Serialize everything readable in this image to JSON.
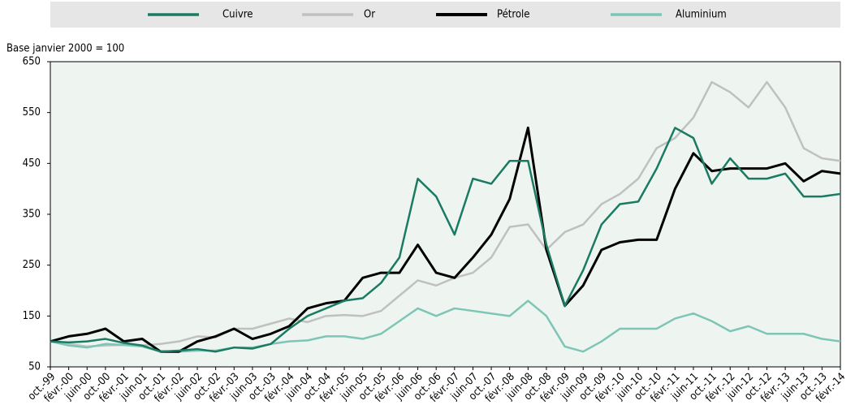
{
  "chart_data": {
    "type": "line",
    "y_axis_label": "Base janvier 2000 = 100",
    "categories": [
      "oct.-99",
      "févr.-00",
      "juin-00",
      "oct.-00",
      "févr.-01",
      "juin-01",
      "oct.-01",
      "févr.-02",
      "juin-02",
      "oct.-02",
      "févr.-03",
      "juin-03",
      "oct.-03",
      "févr.-04",
      "juin-04",
      "oct.-04",
      "févr.-05",
      "juin-05",
      "oct.-05",
      "févr.-06",
      "juin-06",
      "oct.-06",
      "févr.-07",
      "juin-07",
      "oct.-07",
      "févr.-08",
      "juin-08",
      "oct.-08",
      "févr.-09",
      "juin-09",
      "oct.-09",
      "févr.-10",
      "juin-10",
      "oct.-10",
      "févr.-11",
      "juin-11",
      "oct.-11",
      "févr.-12",
      "juin-12",
      "oct.-12",
      "févr.-13",
      "juin-13",
      "oct.-13",
      "févr.-14"
    ],
    "series": [
      {
        "name": "Cuivre",
        "color": "#1b7a62",
        "width": 2.5,
        "values": [
          100,
          98,
          100,
          105,
          97,
          92,
          80,
          82,
          85,
          80,
          88,
          86,
          95,
          125,
          150,
          165,
          180,
          185,
          215,
          265,
          420,
          385,
          310,
          420,
          410,
          455,
          455,
          290,
          170,
          240,
          330,
          370,
          375,
          440,
          520,
          500,
          410,
          460,
          420,
          420,
          430,
          385,
          385,
          390
        ]
      },
      {
        "name": "Or",
        "color": "#c0c0c0",
        "width": 2.5,
        "values": [
          100,
          95,
          90,
          92,
          93,
          92,
          95,
          100,
          110,
          108,
          125,
          125,
          135,
          145,
          138,
          150,
          152,
          150,
          160,
          190,
          220,
          210,
          225,
          235,
          265,
          325,
          330,
          280,
          315,
          330,
          370,
          390,
          420,
          480,
          500,
          540,
          610,
          590,
          560,
          610,
          560,
          480,
          460,
          455
        ]
      },
      {
        "name": "Pétrole",
        "color": "#000000",
        "width": 3,
        "values": [
          100,
          110,
          115,
          125,
          100,
          105,
          80,
          80,
          100,
          110,
          125,
          105,
          115,
          130,
          165,
          175,
          180,
          225,
          235,
          235,
          290,
          235,
          225,
          265,
          310,
          380,
          520,
          280,
          170,
          210,
          280,
          295,
          300,
          300,
          400,
          470,
          435,
          440,
          440,
          440,
          450,
          415,
          435,
          430
        ]
      },
      {
        "name": "Aluminium",
        "color": "#7fc5b5",
        "width": 2.5,
        "values": [
          100,
          92,
          88,
          95,
          93,
          90,
          80,
          80,
          82,
          82,
          88,
          88,
          95,
          100,
          102,
          110,
          110,
          105,
          115,
          140,
          165,
          150,
          165,
          160,
          155,
          150,
          180,
          150,
          90,
          80,
          100,
          125,
          125,
          125,
          145,
          155,
          140,
          120,
          130,
          115,
          115,
          115,
          105,
          100
        ]
      }
    ],
    "ylim": [
      50,
      650
    ],
    "yticks": [
      50,
      150,
      250,
      350,
      450,
      550,
      650
    ]
  }
}
